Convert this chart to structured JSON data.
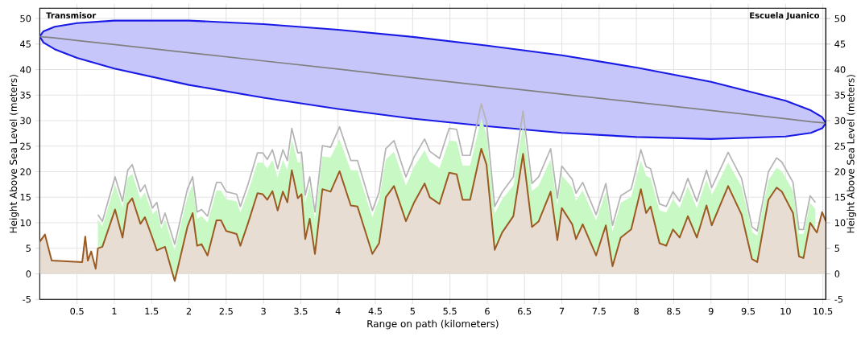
{
  "chart_data": {
    "type": "line",
    "xlabel": "Range on path (kilometers)",
    "ylabel": "Height Above Sea Level (meters)",
    "y2label": "Height Above Sea Level (meters)",
    "annotations": [
      "Transmisor",
      "Escuela Juanico"
    ],
    "x": [
      0,
      0.07,
      0.16,
      0.57,
      0.61,
      0.645,
      0.69,
      0.75,
      0.78,
      0.84,
      1.01,
      1.11,
      1.18,
      1.24,
      1.35,
      1.41,
      1.51,
      1.57,
      1.63,
      1.68,
      1.81,
      1.98,
      2.05,
      2.11,
      2.17,
      2.25,
      2.37,
      2.43,
      2.5,
      2.64,
      2.69,
      2.79,
      2.92,
      2.99,
      3.05,
      3.12,
      3.19,
      3.26,
      3.32,
      3.38,
      3.46,
      3.51,
      3.56,
      3.62,
      3.69,
      3.79,
      3.9,
      4.02,
      4.17,
      4.26,
      4.46,
      4.55,
      4.64,
      4.75,
      4.91,
      5.02,
      5.16,
      5.23,
      5.36,
      5.49,
      5.59,
      5.67,
      5.77,
      5.92,
      5.99,
      6.1,
      6.2,
      6.35,
      6.48,
      6.6,
      6.69,
      6.85,
      6.94,
      7.0,
      7.14,
      7.19,
      7.28,
      7.46,
      7.59,
      7.68,
      7.79,
      7.93,
      8.06,
      8.13,
      8.19,
      8.31,
      8.4,
      8.49,
      8.58,
      8.69,
      8.81,
      8.94,
      9.01,
      9.23,
      9.41,
      9.55,
      9.62,
      9.77,
      9.88,
      9.95,
      10.1,
      10.18,
      10.24,
      10.33,
      10.4,
      10.42,
      10.49,
      10.54
    ],
    "series": [
      {
        "type": "area",
        "color": "#9a5a22",
        "values": [
          6.3,
          7.7,
          2.6,
          2.3,
          7.3,
          2.6,
          4.4,
          1.0,
          5.0,
          5.3,
          12.6,
          7.1,
          13.7,
          14.8,
          9.8,
          11.1,
          7.1,
          4.6,
          5.0,
          5.3,
          -1.4,
          9.2,
          11.9,
          5.5,
          5.8,
          3.6,
          10.5,
          10.5,
          8.4,
          7.8,
          5.5,
          9.8,
          15.8,
          15.6,
          14.5,
          16.2,
          12.4,
          16.1,
          14.0,
          20.3,
          14.8,
          15.6,
          6.8,
          10.8,
          3.9,
          16.6,
          16.1,
          20.1,
          13.4,
          13.2,
          3.9,
          6.0,
          15.0,
          17.2,
          10.3,
          14.0,
          17.7,
          15.0,
          13.7,
          19.8,
          19.5,
          14.5,
          14.5,
          24.5,
          21.4,
          4.7,
          8.1,
          11.3,
          23.5,
          9.2,
          10.3,
          16.1,
          6.6,
          12.9,
          9.7,
          6.8,
          9.7,
          3.6,
          9.5,
          1.5,
          7.1,
          8.7,
          16.6,
          11.9,
          13.2,
          6.0,
          5.5,
          8.7,
          7.1,
          11.3,
          7.1,
          13.4,
          9.5,
          17.2,
          11.6,
          2.9,
          2.3,
          14.5,
          16.9,
          16.1,
          11.9,
          3.4,
          3.1,
          10.0,
          8.5,
          8.1,
          12.1,
          10.3
        ]
      },
      {
        "color": "#b4b4b4",
        "values": [
          null,
          null,
          null,
          null,
          null,
          null,
          null,
          null,
          11.6,
          10.3,
          19.0,
          14.2,
          20.3,
          21.4,
          16.1,
          17.4,
          12.9,
          14.0,
          9.8,
          11.9,
          5.8,
          16.6,
          19.0,
          12.1,
          12.6,
          11.3,
          17.9,
          17.9,
          16.1,
          15.6,
          13.2,
          17.4,
          23.7,
          23.7,
          22.4,
          24.3,
          20.6,
          24.3,
          22.2,
          28.5,
          23.7,
          23.8,
          15.4,
          19.0,
          12.1,
          25.1,
          24.8,
          28.8,
          22.2,
          22.2,
          12.4,
          16.0,
          24.5,
          26.1,
          19.0,
          22.9,
          26.4,
          24.0,
          22.6,
          28.5,
          28.3,
          23.2,
          23.2,
          33.3,
          29.8,
          13.2,
          16.0,
          19.0,
          31.9,
          17.7,
          19.0,
          24.5,
          14.8,
          21.1,
          18.5,
          15.8,
          17.9,
          11.6,
          17.7,
          9.5,
          15.3,
          16.6,
          24.3,
          21.0,
          20.6,
          13.7,
          13.2,
          16.1,
          14.2,
          18.7,
          14.2,
          20.3,
          16.9,
          23.8,
          18.7,
          9.2,
          8.4,
          20.0,
          22.7,
          21.9,
          17.9,
          8.7,
          8.7,
          15.3,
          14.0,
          null,
          null,
          null
        ],
        "lower": [
          null,
          null,
          null,
          null,
          null,
          null,
          null,
          null,
          5.0,
          5.3,
          12.6,
          7.1,
          13.7,
          14.8,
          9.8,
          11.1,
          7.1,
          4.6,
          5.0,
          5.3,
          -1.4,
          9.2,
          11.9,
          5.5,
          5.8,
          3.6,
          10.5,
          10.5,
          8.4,
          7.8,
          5.5,
          9.8,
          15.8,
          15.6,
          14.5,
          16.2,
          12.4,
          16.1,
          14.0,
          20.3,
          14.8,
          15.6,
          6.8,
          10.8,
          3.9,
          16.6,
          16.1,
          20.1,
          13.4,
          13.2,
          3.9,
          6.0,
          15.0,
          17.2,
          10.3,
          14.0,
          17.7,
          15.0,
          13.7,
          19.8,
          19.5,
          14.5,
          14.5,
          24.5,
          21.4,
          4.7,
          8.1,
          11.3,
          23.5,
          9.2,
          10.3,
          16.1,
          6.6,
          12.9,
          9.7,
          6.8,
          9.7,
          3.6,
          9.5,
          1.5,
          7.1,
          8.7,
          16.6,
          11.9,
          13.2,
          6.0,
          5.5,
          8.7,
          7.1,
          11.3,
          7.1,
          13.4,
          9.5,
          17.2,
          11.6,
          2.9,
          2.3,
          14.5,
          16.9,
          16.1,
          11.9,
          3.4,
          3.1,
          10.0,
          8.5,
          null,
          null,
          null
        ],
        "upper": [
          null,
          null,
          null,
          null,
          null,
          null,
          null,
          null,
          10.6,
          9.3,
          17.5,
          13.0,
          18.8,
          19.6,
          14.6,
          16.0,
          11.7,
          12.5,
          8.8,
          10.6,
          4.6,
          15.0,
          17.4,
          10.8,
          11.3,
          10.1,
          16.3,
          16.3,
          14.6,
          14.2,
          12.0,
          15.9,
          21.8,
          21.8,
          20.6,
          22.3,
          18.9,
          22.3,
          20.4,
          26.3,
          21.8,
          21.9,
          13.9,
          17.3,
          10.8,
          23.0,
          22.8,
          26.4,
          20.3,
          20.3,
          11.1,
          14.6,
          22.4,
          23.9,
          17.3,
          21.0,
          24.2,
          22.0,
          20.7,
          26.1,
          25.9,
          21.2,
          21.2,
          30.5,
          27.3,
          11.8,
          14.6,
          17.3,
          29.2,
          16.2,
          17.3,
          22.4,
          13.4,
          19.3,
          16.9,
          14.3,
          16.3,
          10.4,
          16.1,
          8.3,
          13.9,
          15.1,
          22.2,
          19.2,
          18.8,
          12.4,
          12.0,
          14.6,
          12.9,
          17.1,
          12.9,
          18.5,
          15.4,
          21.8,
          17.1,
          8.2,
          7.5,
          18.3,
          20.8,
          20.1,
          16.3,
          7.8,
          7.8,
          13.9,
          12.7,
          null,
          null,
          null
        ]
      },
      {
        "color": "#808080",
        "x": [
          0,
          0.05,
          0.2,
          0.5,
          1,
          2,
          3,
          4,
          5,
          6,
          7,
          8,
          9,
          10,
          10.34,
          10.49,
          10.54
        ],
        "values": [
          46.5,
          46.4,
          46.2,
          45.7,
          44.9,
          43.3,
          41.7,
          40.1,
          38.4,
          36.8,
          35.2,
          33.6,
          32.0,
          30.4,
          29.8,
          29.6,
          29.5
        ],
        "lower": [
          46.5,
          45.3,
          44.0,
          42.3,
          40.2,
          37.0,
          34.5,
          32.3,
          30.4,
          28.9,
          27.6,
          26.8,
          26.4,
          26.9,
          27.6,
          28.5,
          29.5
        ],
        "upper": [
          46.5,
          47.5,
          48.4,
          49.1,
          49.6,
          49.6,
          48.9,
          47.8,
          46.4,
          44.7,
          42.8,
          40.4,
          37.6,
          33.9,
          32.0,
          30.7,
          29.5
        ]
      }
    ],
    "xlim": [
      0,
      10.54
    ],
    "xticks": [
      0.5,
      1,
      1.5,
      2,
      2.5,
      3,
      3.5,
      4,
      4.5,
      5,
      5.5,
      6,
      6.5,
      7,
      7.5,
      8,
      8.5,
      9,
      9.5,
      10,
      10.5
    ],
    "ylim": [
      -5,
      52
    ],
    "yticks": [
      -5,
      0,
      5,
      10,
      15,
      20,
      25,
      30,
      35,
      40,
      45,
      50
    ],
    "y2lim": [
      -5,
      52
    ],
    "y2ticks": [
      -5,
      0,
      5,
      10,
      15,
      20,
      25,
      30,
      35,
      40,
      45,
      50
    ],
    "grid": true
  }
}
